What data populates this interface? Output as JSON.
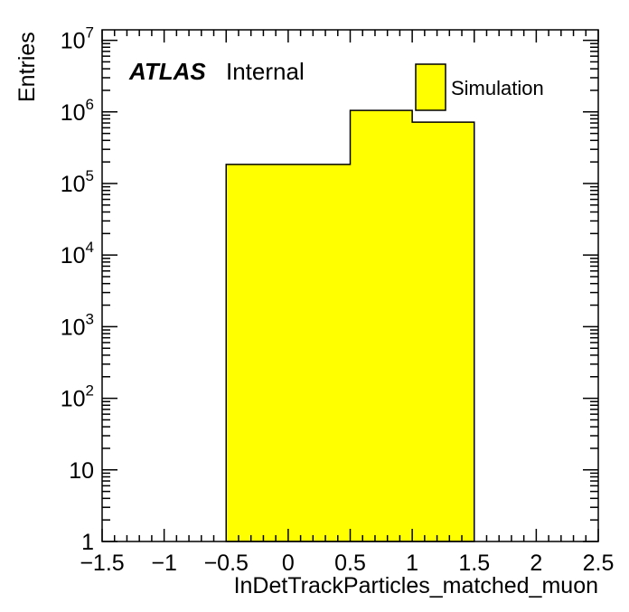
{
  "figure": {
    "background": "#ffffff",
    "frame_color": "#000000",
    "annotations": {
      "experiment": "ATLAS",
      "status": "Internal"
    },
    "legend": {
      "position": "top-center-inside",
      "entries": [
        {
          "label": "Simulation",
          "fill": "#ffff00",
          "border": "#000000"
        }
      ]
    }
  },
  "chart_data": {
    "type": "bar",
    "style": "filled-step-histogram",
    "title": "",
    "xlabel": "InDetTrackParticles_matched_muon",
    "ylabel": "Entries",
    "x_edges": [
      -0.5,
      0.5,
      1.0,
      1.5
    ],
    "values": [
      185000,
      1050000,
      720000
    ],
    "series": [
      {
        "name": "Simulation",
        "color": "#ffff00",
        "outline": "#000000",
        "x_edges": [
          -0.5,
          0.5,
          1.0,
          1.5
        ],
        "values": [
          185000,
          1050000,
          720000
        ]
      }
    ],
    "xlim": [
      -1.5,
      2.5
    ],
    "ylim": [
      1,
      14000000
    ],
    "y_scale": "log",
    "grid": false,
    "ticks_all_four_sides": true,
    "x_ticks": {
      "major_step": 0.5,
      "minor_step": 0.1,
      "labels": [
        "−1.5",
        "−1",
        "−0.5",
        "0",
        "0.5",
        "1",
        "1.5",
        "2",
        "2.5"
      ]
    },
    "y_ticks": {
      "majors": [
        {
          "base": "1"
        },
        {
          "base": "10"
        },
        {
          "base": "10",
          "exp": "2"
        },
        {
          "base": "10",
          "exp": "3"
        },
        {
          "base": "10",
          "exp": "4"
        },
        {
          "base": "10",
          "exp": "5"
        },
        {
          "base": "10",
          "exp": "6"
        },
        {
          "base": "10",
          "exp": "7"
        }
      ],
      "minor_pattern": "log-2-to-9"
    }
  }
}
